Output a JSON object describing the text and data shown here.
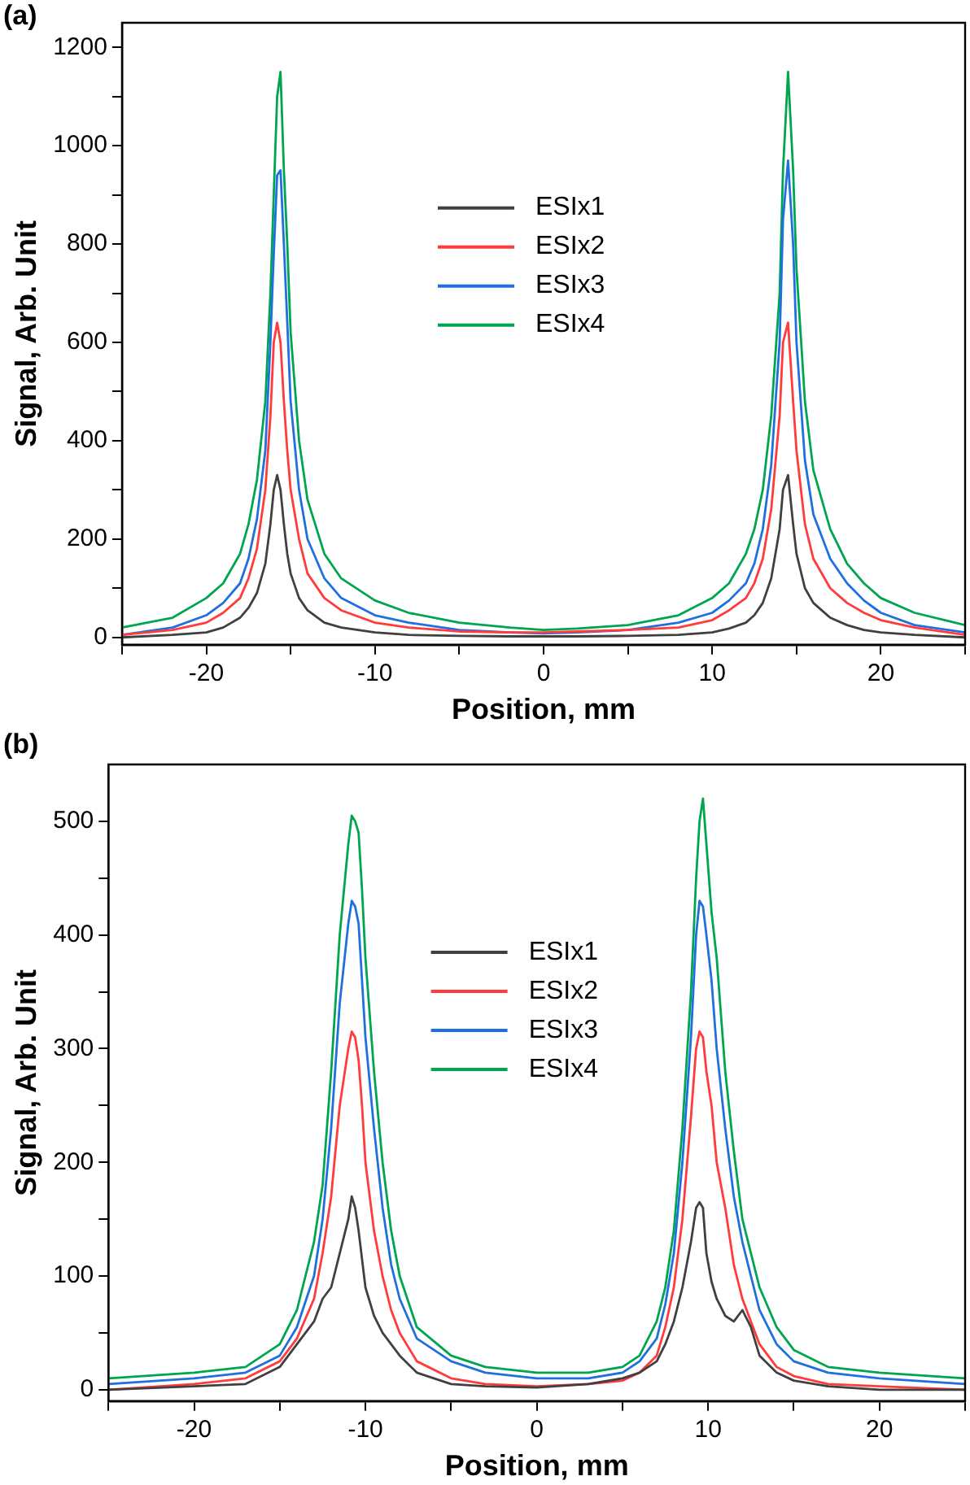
{
  "chart_data": [
    {
      "type": "line",
      "title": "(a)",
      "xlabel": "Position, mm",
      "ylabel": "Signal, Arb. Unit",
      "legend": "top",
      "grid": false,
      "marker": "none",
      "line_style": "solid",
      "x": [
        -25,
        -22,
        -20,
        -19,
        -18,
        -17.5,
        -17,
        -16.5,
        -16.2,
        -16,
        -15.8,
        -15.6,
        -15.4,
        -15.2,
        -15,
        -14.5,
        -14,
        -13,
        -12,
        -10,
        -8,
        -5,
        -2,
        0,
        2,
        5,
        8,
        10,
        11,
        12,
        12.5,
        13,
        13.5,
        14,
        14.2,
        14.5,
        14.8,
        15,
        15.5,
        16,
        17,
        18,
        19,
        20,
        22,
        25
      ],
      "xlim": [
        -25,
        25
      ],
      "ylim": [
        -15,
        1250
      ],
      "xticks": [
        {
          "value": -25,
          "label": null
        },
        -20,
        {
          "value": -15,
          "label": null
        },
        -10,
        {
          "value": -5,
          "label": null
        },
        0,
        {
          "value": 5,
          "label": null
        },
        10,
        {
          "value": 15,
          "label": null
        },
        20,
        {
          "value": 25,
          "label": null
        }
      ],
      "yticks": [
        0,
        {
          "value": 100,
          "label": null
        },
        200,
        {
          "value": 300,
          "label": null
        },
        400,
        {
          "value": 500,
          "label": null
        },
        600,
        {
          "value": 700,
          "label": null
        },
        800,
        {
          "value": 900,
          "label": null
        },
        1000,
        {
          "value": 1100,
          "label": null
        },
        1200
      ],
      "series": [
        {
          "name": "ESIx1",
          "color": "#404040",
          "values": [
            0,
            5,
            10,
            20,
            40,
            60,
            90,
            150,
            230,
            300,
            330,
            300,
            230,
            170,
            130,
            80,
            55,
            30,
            20,
            10,
            5,
            3,
            2,
            2,
            2,
            3,
            5,
            10,
            18,
            30,
            45,
            70,
            120,
            220,
            300,
            330,
            230,
            170,
            100,
            70,
            40,
            25,
            15,
            10,
            5,
            0
          ]
        },
        {
          "name": "ESIx2",
          "color": "#ff3b3b",
          "values": [
            5,
            15,
            30,
            50,
            80,
            120,
            180,
            300,
            450,
            600,
            640,
            600,
            480,
            380,
            300,
            200,
            130,
            80,
            55,
            30,
            20,
            12,
            10,
            10,
            12,
            15,
            20,
            35,
            55,
            80,
            110,
            160,
            260,
            450,
            600,
            640,
            480,
            380,
            230,
            160,
            100,
            70,
            50,
            35,
            20,
            5
          ]
        },
        {
          "name": "ESIx3",
          "color": "#1f6fe0",
          "values": [
            5,
            20,
            45,
            70,
            110,
            160,
            240,
            380,
            600,
            780,
            940,
            950,
            800,
            640,
            480,
            300,
            200,
            120,
            80,
            45,
            30,
            15,
            10,
            8,
            10,
            15,
            30,
            50,
            75,
            110,
            150,
            220,
            350,
            600,
            850,
            970,
            800,
            600,
            360,
            250,
            160,
            110,
            75,
            50,
            25,
            10
          ]
        },
        {
          "name": "ESIx4",
          "color": "#00a550",
          "values": [
            20,
            40,
            80,
            110,
            170,
            230,
            320,
            480,
            700,
            900,
            1100,
            1150,
            950,
            800,
            620,
            400,
            280,
            170,
            120,
            75,
            50,
            30,
            20,
            15,
            18,
            25,
            45,
            80,
            110,
            170,
            220,
            300,
            450,
            700,
            950,
            1150,
            950,
            750,
            480,
            340,
            220,
            150,
            110,
            80,
            50,
            25
          ]
        }
      ]
    },
    {
      "type": "line",
      "title": "(b)",
      "xlabel": "Position, mm",
      "ylabel": "Signal, Arb. Unit",
      "legend": "top",
      "grid": false,
      "marker": "none",
      "line_style": "solid",
      "x": [
        -25,
        -20,
        -17,
        -15,
        -14,
        -13,
        -12.5,
        -12,
        -11.5,
        -11,
        -10.8,
        -10.6,
        -10.4,
        -10.2,
        -10,
        -9.5,
        -9,
        -8.5,
        -8,
        -7,
        -5,
        -3,
        0,
        3,
        5,
        6,
        7,
        7.5,
        8,
        8.5,
        9,
        9.3,
        9.5,
        9.7,
        9.9,
        10.2,
        10.5,
        11,
        11.5,
        12,
        12.5,
        13,
        14,
        15,
        17,
        20,
        25
      ],
      "xlim": [
        -25,
        25
      ],
      "ylim": [
        -10,
        550
      ],
      "xticks": [
        {
          "value": -25,
          "label": null
        },
        -20,
        {
          "value": -15,
          "label": null
        },
        -10,
        {
          "value": -5,
          "label": null
        },
        0,
        {
          "value": 5,
          "label": null
        },
        10,
        {
          "value": 15,
          "label": null
        },
        20,
        {
          "value": 25,
          "label": null
        }
      ],
      "yticks": [
        0,
        {
          "value": 50,
          "label": null
        },
        100,
        {
          "value": 150,
          "label": null
        },
        200,
        {
          "value": 250,
          "label": null
        },
        300,
        {
          "value": 350,
          "label": null
        },
        400,
        {
          "value": 450,
          "label": null
        },
        500
      ],
      "series": [
        {
          "name": "ESIx1",
          "color": "#404040",
          "values": [
            0,
            3,
            5,
            20,
            40,
            60,
            80,
            90,
            120,
            150,
            170,
            160,
            140,
            115,
            90,
            65,
            50,
            40,
            30,
            15,
            5,
            3,
            2,
            5,
            10,
            15,
            25,
            40,
            60,
            90,
            130,
            160,
            165,
            160,
            120,
            95,
            80,
            65,
            60,
            70,
            55,
            30,
            15,
            8,
            3,
            0,
            0
          ]
        },
        {
          "name": "ESIx2",
          "color": "#ff3b3b",
          "values": [
            0,
            5,
            10,
            25,
            45,
            80,
            120,
            170,
            250,
            300,
            315,
            310,
            290,
            250,
            200,
            140,
            100,
            70,
            50,
            25,
            10,
            5,
            3,
            5,
            8,
            15,
            30,
            55,
            90,
            150,
            240,
            300,
            315,
            310,
            280,
            250,
            200,
            160,
            110,
            80,
            60,
            40,
            20,
            12,
            5,
            3,
            0
          ]
        },
        {
          "name": "ESIx3",
          "color": "#1f6fe0",
          "values": [
            5,
            10,
            15,
            30,
            55,
            100,
            150,
            230,
            340,
            410,
            430,
            425,
            410,
            360,
            310,
            230,
            160,
            110,
            80,
            45,
            25,
            15,
            10,
            10,
            15,
            25,
            45,
            75,
            120,
            200,
            310,
            400,
            430,
            425,
            400,
            360,
            300,
            230,
            170,
            130,
            100,
            70,
            40,
            25,
            15,
            10,
            5
          ]
        },
        {
          "name": "ESIx4",
          "color": "#00a550",
          "values": [
            10,
            15,
            20,
            40,
            70,
            130,
            180,
            280,
            400,
            480,
            505,
            500,
            490,
            440,
            380,
            280,
            200,
            140,
            100,
            55,
            30,
            20,
            15,
            15,
            20,
            30,
            60,
            90,
            140,
            230,
            350,
            450,
            500,
            520,
            480,
            420,
            380,
            280,
            210,
            150,
            120,
            90,
            55,
            35,
            20,
            15,
            10
          ]
        }
      ]
    }
  ]
}
